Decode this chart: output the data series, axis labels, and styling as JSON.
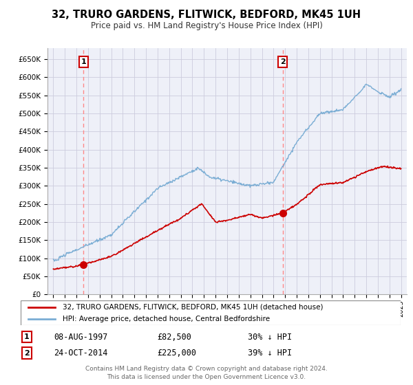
{
  "title": "32, TRURO GARDENS, FLITWICK, BEDFORD, MK45 1UH",
  "subtitle": "Price paid vs. HM Land Registry's House Price Index (HPI)",
  "legend_label_red": "32, TRURO GARDENS, FLITWICK, BEDFORD, MK45 1UH (detached house)",
  "legend_label_blue": "HPI: Average price, detached house, Central Bedfordshire",
  "point1_label": "1",
  "point1_date": "08-AUG-1997",
  "point1_price": "£82,500",
  "point1_hpi": "30% ↓ HPI",
  "point1_x": 1997.6,
  "point1_y": 82500,
  "point2_label": "2",
  "point2_date": "24-OCT-2014",
  "point2_price": "£225,000",
  "point2_hpi": "39% ↓ HPI",
  "point2_x": 2014.8,
  "point2_y": 225000,
  "footer": "Contains HM Land Registry data © Crown copyright and database right 2024.\nThis data is licensed under the Open Government Licence v3.0.",
  "ylim": [
    0,
    680000
  ],
  "xlim": [
    1994.5,
    2025.5
  ],
  "red_color": "#cc0000",
  "blue_color": "#7aadd4",
  "grid_color": "#ccccdd",
  "bg_color": "#eef0f8",
  "dashed_color": "#ff8888"
}
